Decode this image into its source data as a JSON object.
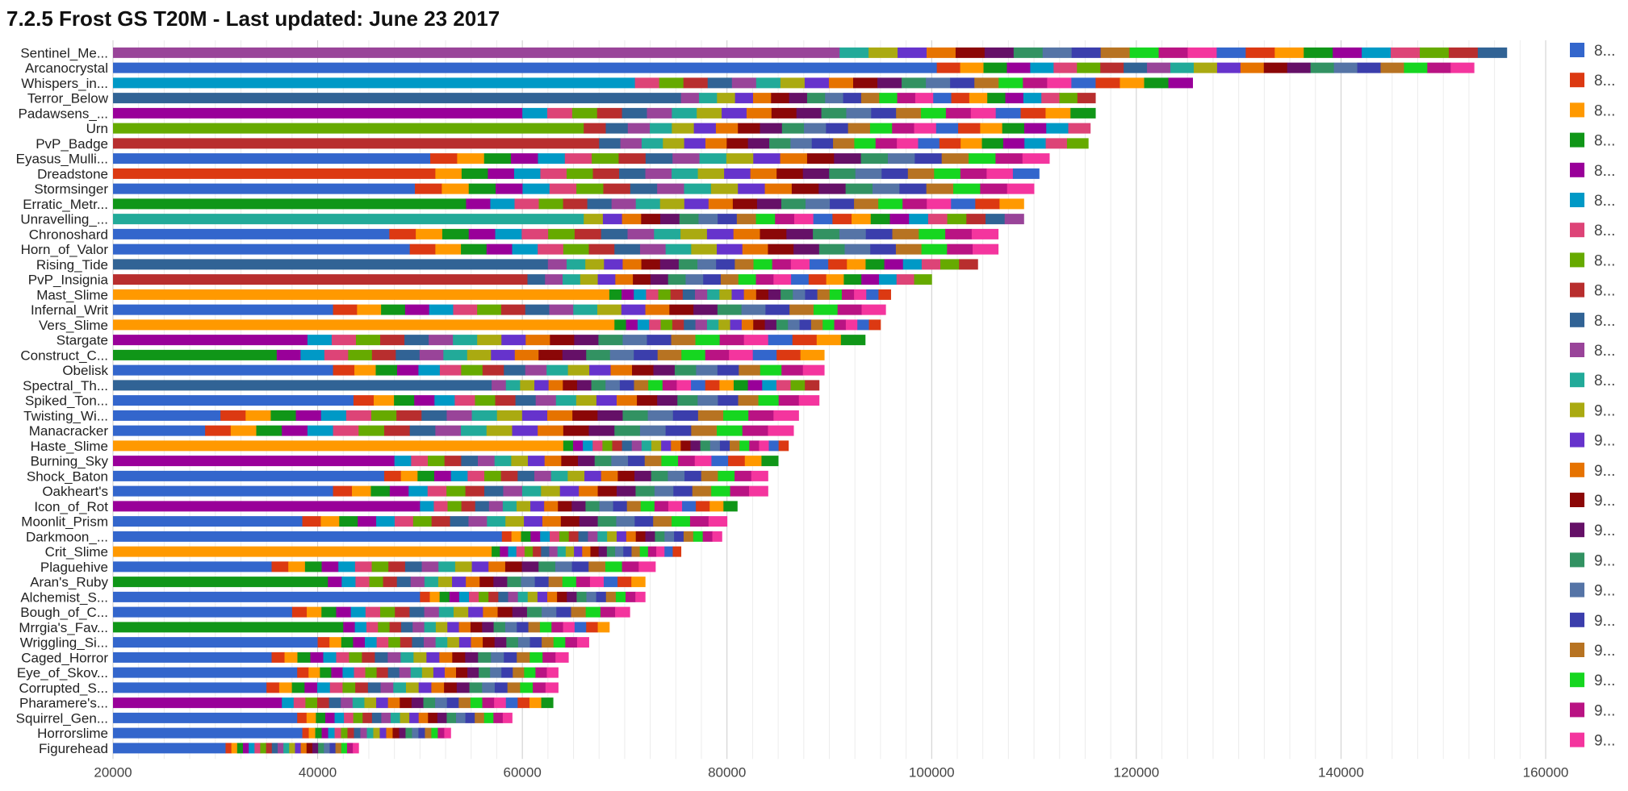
{
  "chart_data": {
    "type": "bar",
    "orientation": "horizontal",
    "stacked": true,
    "title": "7.2.5 Frost GS T20M -  Last updated: June 23 2017",
    "xlabel": "",
    "ylabel": "",
    "xlim": [
      20000,
      160000
    ],
    "xticks": [
      20000,
      40000,
      60000,
      80000,
      100000,
      120000,
      140000,
      160000
    ],
    "grid": true,
    "legend_position": "right",
    "legend_labels": [
      "8...",
      "8...",
      "8...",
      "8...",
      "8...",
      "8...",
      "8...",
      "8...",
      "8...",
      "8...",
      "8...",
      "8...",
      "9...",
      "9...",
      "9...",
      "9...",
      "9...",
      "9...",
      "9...",
      "9...",
      "9...",
      "9...",
      "9...",
      "9..."
    ],
    "colors": [
      "#3366cc",
      "#dc3912",
      "#ff9900",
      "#109618",
      "#990099",
      "#0099c6",
      "#dd4477",
      "#66aa00",
      "#b82e2e",
      "#316395",
      "#994499",
      "#22aa99",
      "#aaaa11",
      "#6633cc",
      "#e67300",
      "#8b0707",
      "#651067",
      "#329262",
      "#5574a6",
      "#3b3eac",
      "#b77322",
      "#16d620",
      "#b91383",
      "#f4359e"
    ],
    "categories": [
      "Sentinel_Me...",
      "Arcanocrystal",
      "Whispers_in...",
      "Terror_Below",
      "Padawsens_...",
      "Urn",
      "PvP_Badge",
      "Eyasus_Mulli...",
      "Dreadstone",
      "Stormsinger",
      "Erratic_Metr...",
      "Unravelling_...",
      "Chronoshard",
      "Horn_of_Valor",
      "Rising_Tide",
      "PvP_Insignia",
      "Mast_Slime",
      "Infernal_Writ",
      "Vers_Slime",
      "Stargate",
      "Construct_C...",
      "Obelisk",
      "Spectral_Th...",
      "Spiked_Ton...",
      "Twisting_Wi...",
      "Manacracker",
      "Haste_Slime",
      "Burning_Sky",
      "Shock_Baton",
      "Oakheart's",
      "Icon_of_Rot",
      "Moonlit_Prism",
      "Darkmoon_...",
      "Crit_Slime",
      "Plaguehive",
      "Aran's_Ruby",
      "Alchemist_S...",
      "Bough_of_C...",
      "Mrrgia's_Fav...",
      "Wriggling_Si...",
      "Caged_Horror",
      "Eye_of_Skov...",
      "Corrupted_S...",
      "Pharamere's...",
      "Squirrel_Gen...",
      "Horrorslime",
      "Figurehead"
    ],
    "base_series": [
      10,
      0,
      5,
      9,
      4,
      7,
      8,
      0,
      1,
      0,
      3,
      11,
      0,
      0,
      9,
      8,
      2,
      0,
      2,
      4,
      3,
      0,
      9,
      0,
      0,
      0,
      2,
      4,
      0,
      0,
      4,
      0,
      0,
      2,
      0,
      3,
      0,
      0,
      3,
      0,
      0,
      0,
      0,
      4,
      0,
      0,
      0
    ],
    "base_values": [
      91000,
      100500,
      71000,
      75500,
      60000,
      66000,
      67500,
      51000,
      51500,
      49500,
      54500,
      66000,
      47000,
      49000,
      62500,
      60500,
      68500,
      41500,
      69000,
      39000,
      36000,
      41500,
      57000,
      43500,
      30500,
      29000,
      64000,
      47500,
      46500,
      41500,
      50000,
      38500,
      58000,
      57000,
      35500,
      41000,
      50000,
      37500,
      42500,
      40000,
      35500,
      38000,
      35000,
      36500,
      38000,
      38500,
      31000
    ],
    "totals": [
      156200,
      153000,
      125500,
      116000,
      116000,
      115500,
      115300,
      111500,
      110500,
      110000,
      109000,
      109000,
      106500,
      106500,
      104500,
      100000,
      96000,
      95500,
      95000,
      93500,
      89500,
      89500,
      89000,
      89000,
      87000,
      86500,
      86000,
      85000,
      84000,
      84000,
      81000,
      80000,
      79500,
      75500,
      73000,
      72000,
      72000,
      70500,
      68500,
      66500,
      64500,
      63500,
      63500,
      63000,
      59000,
      53000,
      44000
    ]
  }
}
